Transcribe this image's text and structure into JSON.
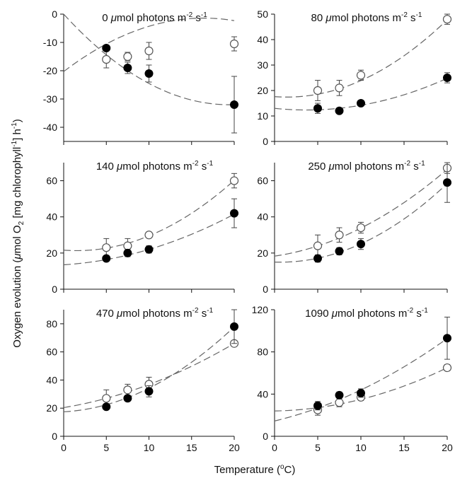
{
  "figure": {
    "xlabel_parts": {
      "main": "Temperature (",
      "sup": "o",
      "end": "C)"
    },
    "ylabel_parts": {
      "a": "Oxygen evolution (",
      "mu": "μ",
      "b": "mol O",
      "sub2": "2",
      "c": " [mg chlorophyll",
      "sup1": "-1",
      "d": "] h",
      "sup2": "-1",
      "e": ")"
    }
  },
  "chart_data": [
    {
      "type": "scatter",
      "title_parts": {
        "value": "0",
        "mu": "μ",
        "rest": "mol photons m",
        "sup1": "-2",
        "mid": " s",
        "sup2": "-1"
      },
      "xlim": [
        0,
        20
      ],
      "ylim": [
        -45,
        0
      ],
      "xticks": [
        0,
        5,
        10,
        15,
        20
      ],
      "show_xticklabels": false,
      "yticks": [
        -40,
        -30,
        -20,
        -10,
        0
      ],
      "series": [
        {
          "marker": "open",
          "x": [
            5,
            7.5,
            10,
            20
          ],
          "y": [
            -16,
            -15,
            -13,
            -10.5
          ],
          "err": [
            3,
            1.5,
            3,
            2.5
          ],
          "fit": [
            -20.3,
            2.3,
            -0.07
          ]
        },
        {
          "marker": "filled",
          "x": [
            5,
            7.5,
            10,
            20
          ],
          "y": [
            -12,
            -19,
            -21,
            -32
          ],
          "err": [
            1,
            2,
            3,
            10
          ],
          "fit": [
            0,
            -3.3,
            0.085
          ]
        }
      ]
    },
    {
      "type": "scatter",
      "title_parts": {
        "value": "80",
        "mu": "μ",
        "rest": "mol photons m",
        "sup1": "-2",
        "mid": " s",
        "sup2": "-1"
      },
      "xlim": [
        0,
        20
      ],
      "ylim": [
        0,
        50
      ],
      "xticks": [
        0,
        5,
        10,
        15,
        20
      ],
      "show_xticklabels": false,
      "yticks": [
        0,
        10,
        20,
        30,
        40,
        50
      ],
      "series": [
        {
          "marker": "open",
          "x": [
            5,
            7.5,
            10,
            20
          ],
          "y": [
            20,
            21,
            26,
            48
          ],
          "err": [
            4,
            3,
            2,
            2
          ],
          "fit": [
            17.6,
            -0.25,
            0.088
          ]
        },
        {
          "marker": "filled",
          "x": [
            5,
            7.5,
            10,
            20
          ],
          "y": [
            13,
            12,
            15,
            25
          ],
          "err": [
            2,
            1,
            1,
            2
          ],
          "fit": [
            13,
            -0.35,
            0.047
          ]
        }
      ]
    },
    {
      "type": "scatter",
      "title_parts": {
        "value": "140",
        "mu": "μ",
        "rest": "mol photons m",
        "sup1": "-2",
        "mid": " s",
        "sup2": "-1"
      },
      "xlim": [
        0,
        20
      ],
      "ylim": [
        0,
        70
      ],
      "xticks": [
        0,
        5,
        10,
        15,
        20
      ],
      "show_xticklabels": false,
      "yticks": [
        0,
        20,
        40,
        60
      ],
      "series": [
        {
          "marker": "open",
          "x": [
            5,
            7.5,
            10,
            20
          ],
          "y": [
            23,
            24,
            30,
            60
          ],
          "err": [
            5,
            4,
            1,
            4
          ],
          "fit": [
            21.6,
            -0.35,
            0.114
          ]
        },
        {
          "marker": "filled",
          "x": [
            5,
            7.5,
            10,
            20
          ],
          "y": [
            17,
            20,
            22,
            42
          ],
          "err": [
            1,
            2,
            2,
            8
          ],
          "fit": [
            13.5,
            0.3,
            0.055
          ]
        }
      ]
    },
    {
      "type": "scatter",
      "title_parts": {
        "value": "250",
        "mu": "μ",
        "rest": "mol photons m",
        "sup1": "-2",
        "mid": " s",
        "sup2": "-1"
      },
      "xlim": [
        0,
        20
      ],
      "ylim": [
        0,
        70
      ],
      "xticks": [
        0,
        5,
        10,
        15,
        20
      ],
      "show_xticklabels": false,
      "yticks": [
        0,
        20,
        40,
        60
      ],
      "series": [
        {
          "marker": "open",
          "x": [
            5,
            7.5,
            10,
            20
          ],
          "y": [
            24,
            30,
            34,
            67
          ],
          "err": [
            6,
            4,
            3,
            3
          ],
          "fit": [
            18.3,
            0.7,
            0.085
          ]
        },
        {
          "marker": "filled",
          "x": [
            5,
            7.5,
            10,
            20
          ],
          "y": [
            17,
            21,
            25,
            59
          ],
          "err": [
            2,
            2,
            3,
            11
          ],
          "fit": [
            15,
            -0.15,
            0.116
          ]
        }
      ]
    },
    {
      "type": "scatter",
      "title_parts": {
        "value": "470",
        "mu": "μ",
        "rest": "mol photons m",
        "sup1": "-2",
        "mid": " s",
        "sup2": "-1"
      },
      "xlim": [
        0,
        20
      ],
      "ylim": [
        0,
        90
      ],
      "xticks": [
        0,
        5,
        10,
        15,
        20
      ],
      "show_xticklabels": true,
      "yticks": [
        0,
        20,
        40,
        60,
        80
      ],
      "series": [
        {
          "marker": "open",
          "x": [
            5,
            7.5,
            10,
            20
          ],
          "y": [
            27,
            33,
            37,
            66
          ],
          "err": [
            6,
            4,
            5,
            2
          ],
          "fit": [
            20.4,
            1.0,
            0.064
          ]
        },
        {
          "marker": "filled",
          "x": [
            5,
            7.5,
            10,
            20
          ],
          "y": [
            21,
            27,
            32,
            78
          ],
          "err": [
            1,
            2,
            4,
            12
          ],
          "fit": [
            17.4,
            0.34,
            0.134
          ]
        }
      ]
    },
    {
      "type": "scatter",
      "title_parts": {
        "value": "1090",
        "mu": "μ",
        "rest": "mol photons m",
        "sup1": "-2",
        "mid": " s",
        "sup2": "-1"
      },
      "xlim": [
        0,
        20
      ],
      "ylim": [
        0,
        120
      ],
      "xticks": [
        0,
        5,
        10,
        15,
        20
      ],
      "show_xticklabels": true,
      "yticks": [
        0,
        40,
        80,
        120
      ],
      "series": [
        {
          "marker": "open",
          "x": [
            5,
            7.5,
            10,
            20
          ],
          "y": [
            25,
            32,
            37,
            65
          ],
          "err": [
            5,
            4,
            3,
            3
          ],
          "fit": [
            24,
            0.15,
            0.095
          ]
        },
        {
          "marker": "filled",
          "x": [
            5,
            7.5,
            10,
            20
          ],
          "y": [
            29,
            39,
            41,
            93
          ],
          "err": [
            4,
            3,
            4,
            20
          ],
          "fit": [
            14.5,
            1.97,
            0.097
          ]
        }
      ]
    }
  ]
}
